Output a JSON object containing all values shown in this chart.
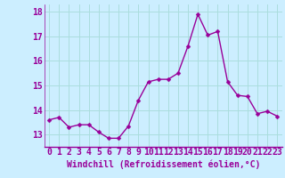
{
  "hours": [
    0,
    1,
    2,
    3,
    4,
    5,
    6,
    7,
    8,
    9,
    10,
    11,
    12,
    13,
    14,
    15,
    16,
    17,
    18,
    19,
    20,
    21,
    22,
    23
  ],
  "values": [
    13.6,
    13.7,
    13.3,
    13.4,
    13.4,
    13.1,
    12.85,
    12.85,
    13.35,
    14.4,
    15.15,
    15.25,
    15.25,
    15.5,
    16.6,
    17.9,
    17.05,
    17.2,
    15.15,
    14.6,
    14.55,
    13.85,
    13.95,
    13.75
  ],
  "line_color": "#990099",
  "marker": "D",
  "marker_size": 2.5,
  "linewidth": 1.0,
  "background_color": "#cceeff",
  "grid_color": "#aadddd",
  "xlabel": "Windchill (Refroidissement éolien,°C)",
  "xlabel_fontsize": 7,
  "tick_label_fontsize": 7,
  "tick_color": "#990099",
  "xlim": [
    -0.5,
    23.5
  ],
  "ylim": [
    12.5,
    18.3
  ],
  "yticks": [
    13,
    14,
    15,
    16,
    17,
    18
  ],
  "xticks": [
    0,
    1,
    2,
    3,
    4,
    5,
    6,
    7,
    8,
    9,
    10,
    11,
    12,
    13,
    14,
    15,
    16,
    17,
    18,
    19,
    20,
    21,
    22,
    23
  ]
}
